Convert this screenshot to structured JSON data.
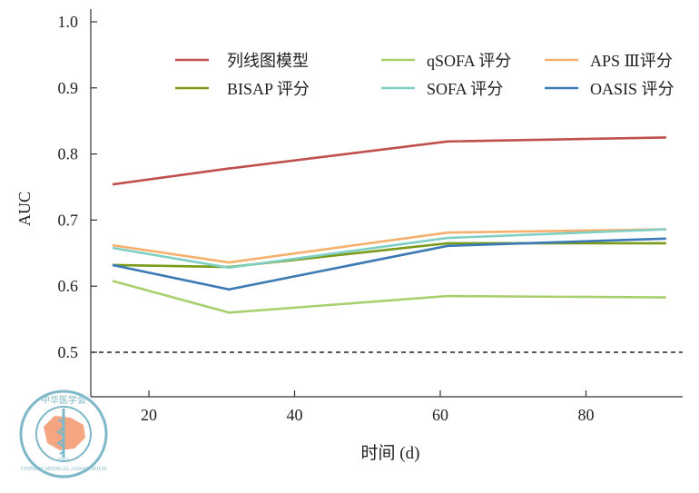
{
  "chart_data": {
    "type": "line",
    "title": "",
    "xlabel": "时间 (d)",
    "ylabel": "AUC",
    "xlim": [
      12,
      93.3
    ],
    "ylim": [
      0.433,
      1.0
    ],
    "xticks": [
      20,
      40,
      60,
      80
    ],
    "yticks": [
      0.5,
      0.6,
      0.7,
      0.8,
      0.9,
      1.0
    ],
    "ytick_labels": [
      "0.5",
      "0.6",
      "0.7",
      "0.8",
      "0.9",
      "1.0"
    ],
    "xtick_labels": [
      "20",
      "40",
      "60",
      "80"
    ],
    "grid": false,
    "legend_position": "top",
    "reference_line": {
      "y": 0.5,
      "style": "dashed"
    },
    "x": [
      15,
      31,
      61,
      91
    ],
    "series": [
      {
        "name": "列线图模型",
        "color": "#c0504d",
        "values": [
          0.754,
          0.778,
          0.819,
          0.825
        ]
      },
      {
        "name": "qSOFA 评分",
        "color": "#a9d06f",
        "values": [
          0.608,
          0.56,
          0.585,
          0.583
        ]
      },
      {
        "name": "APS Ⅲ评分",
        "color": "#f4b06c",
        "values": [
          0.662,
          0.636,
          0.681,
          0.686
        ]
      },
      {
        "name": "BISAP 评分",
        "color": "#7a9a1a",
        "values": [
          0.632,
          0.629,
          0.665,
          0.665
        ]
      },
      {
        "name": "SOFA 评分",
        "color": "#7fcfc4",
        "values": [
          0.658,
          0.628,
          0.673,
          0.686
        ]
      },
      {
        "name": "OASIS 评分",
        "color": "#3b7ab5",
        "values": [
          0.632,
          0.595,
          0.661,
          0.672
        ]
      }
    ]
  },
  "logo": {
    "text_top": "中华医学会",
    "text_bottom": "CHINESE MEDICAL ASSOCIATION",
    "year": "1915"
  }
}
